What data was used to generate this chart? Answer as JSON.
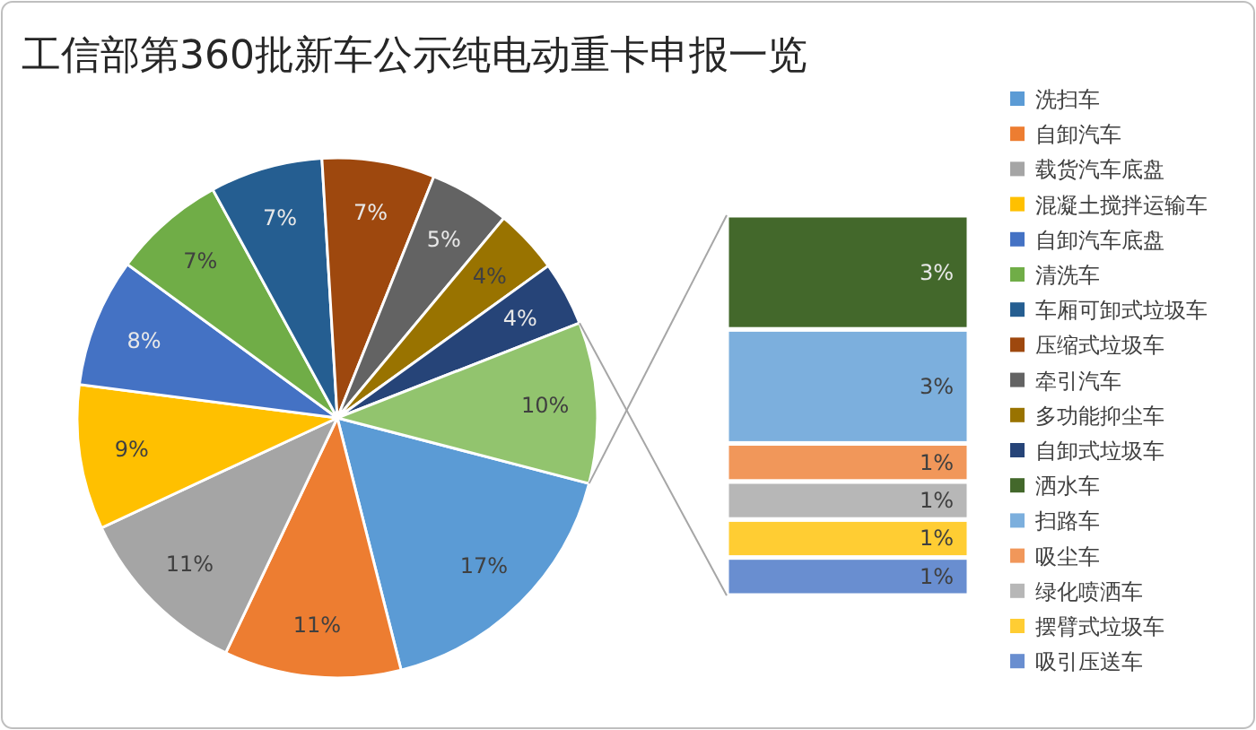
{
  "chart_data": [
    {
      "type": "pie",
      "title": "工信部第360批新车公示纯电动重卡申报一览",
      "legend": "right",
      "categories": [
        "洗扫车",
        "自卸汽车",
        "载货汽车底盘",
        "混凝土搅拌运输车",
        "自卸汽车底盘",
        "清洗车",
        "车厢可卸式垃圾车",
        "压缩式垃圾车",
        "牵引汽车",
        "多功能抑尘车",
        "自卸式垃圾车",
        null
      ],
      "values": [
        17,
        11,
        11,
        9,
        8,
        7,
        7,
        7,
        5,
        4,
        4,
        10
      ],
      "value_labels": [
        "17%",
        "11%",
        "11%",
        "9%",
        "8%",
        "7%",
        "7%",
        "7%",
        "5%",
        "4%",
        "4%",
        "10%"
      ],
      "colors": [
        "#5b9bd5",
        "#ed7d31",
        "#a5a5a5",
        "#ffc000",
        "#4472c4",
        "#70ad47",
        "#255e91",
        "#9e480e",
        "#636363",
        "#997300",
        "#264478",
        "#92c46e"
      ]
    },
    {
      "type": "bar",
      "stacked": true,
      "legend": "right",
      "categories": [
        null
      ],
      "series": [
        {
          "name": "吸引压送车",
          "color": "#698ed0",
          "values": [
            1
          ],
          "value_labels": [
            "1%"
          ]
        },
        {
          "name": "摆臂式垃圾车",
          "color": "#ffcd33",
          "values": [
            1
          ],
          "value_labels": [
            "1%"
          ]
        },
        {
          "name": "绿化喷洒车",
          "color": "#b7b7b7",
          "values": [
            1
          ],
          "value_labels": [
            "1%"
          ]
        },
        {
          "name": "吸尘车",
          "color": "#f1975a",
          "values": [
            1
          ],
          "value_labels": [
            "1%"
          ]
        },
        {
          "name": "扫路车",
          "color": "#7cafdd",
          "values": [
            3
          ],
          "value_labels": [
            "3%"
          ]
        },
        {
          "name": "洒水车",
          "color": "#43682b",
          "values": [
            3
          ],
          "value_labels": [
            "3%"
          ]
        }
      ]
    }
  ]
}
